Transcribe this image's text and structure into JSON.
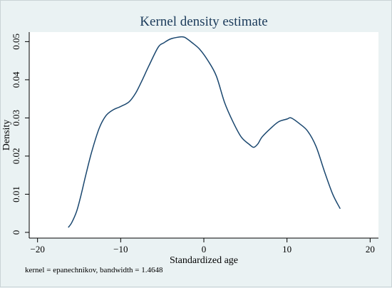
{
  "chart_data": {
    "type": "line",
    "title": "Kernel density estimate",
    "xlabel": "Standardized age",
    "ylabel": "Density",
    "note": "kernel = epanechnikov, bandwidth = 1.4648",
    "xlim": [
      -21,
      21
    ],
    "ylim": [
      -0.0015,
      0.0525
    ],
    "xticks": [
      -20,
      -10,
      0,
      10,
      20
    ],
    "xtick_labels": [
      "−20",
      "−10",
      "0",
      "10",
      "20"
    ],
    "yticks": [
      0,
      0.01,
      0.02,
      0.03,
      0.04,
      0.05
    ],
    "ytick_labels": [
      "0",
      "0.01",
      "0.02",
      "0.03",
      "0.04",
      "0.05"
    ],
    "grid": false,
    "legend": "none",
    "colors": {
      "background": "#eaf2f3",
      "plot_area": "#ffffff",
      "line": "#1a476f",
      "title": "#1a3a5a"
    },
    "series": [
      {
        "x": [
          -16.3,
          -15.9,
          -15.3,
          -14.8,
          -14.2,
          -13.5,
          -12.6,
          -11.8,
          -11.0,
          -10.0,
          -9.0,
          -8.2,
          -7.5,
          -6.6,
          -5.5,
          -4.8,
          -4.0,
          -3.0,
          -2.4,
          -2.0,
          -1.4,
          -0.5,
          0.5,
          1.5,
          2.5,
          3.5,
          4.5,
          5.5,
          6.0,
          6.5,
          7.0,
          8.0,
          9.0,
          10.0,
          10.5,
          11.5,
          12.5,
          13.5,
          14.5,
          15.5,
          16.4
        ],
        "y": [
          0.0013,
          0.0025,
          0.0055,
          0.0095,
          0.015,
          0.021,
          0.0272,
          0.0305,
          0.032,
          0.033,
          0.0342,
          0.0365,
          0.0395,
          0.0437,
          0.0485,
          0.0497,
          0.0507,
          0.0512,
          0.0512,
          0.0507,
          0.0497,
          0.048,
          0.045,
          0.041,
          0.034,
          0.029,
          0.025,
          0.023,
          0.0223,
          0.0232,
          0.025,
          0.0272,
          0.029,
          0.0297,
          0.03,
          0.0285,
          0.0265,
          0.0225,
          0.016,
          0.01,
          0.0062
        ]
      }
    ]
  }
}
